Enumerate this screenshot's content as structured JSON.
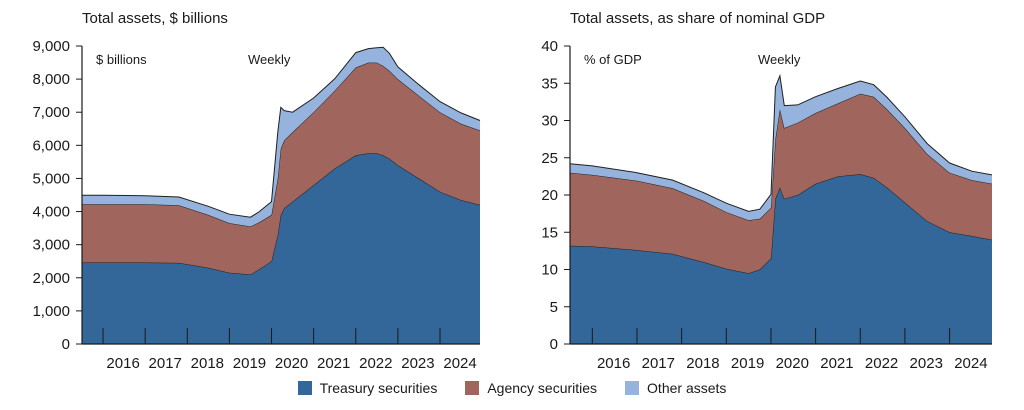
{
  "legend": {
    "treasury": "Treasury securities",
    "agency": "Agency securities",
    "other": "Other assets"
  },
  "colors": {
    "treasury": "#336699",
    "agency": "#a0665e",
    "other": "#95b3dc",
    "stroke": "#1f1f1f"
  },
  "chart_data": [
    {
      "type": "area",
      "stacked": true,
      "title": "Total assets, $ billions",
      "unit_label": "$ billions",
      "frequency_label": "Weekly",
      "ylim": [
        0,
        9000
      ],
      "yticks": [
        0,
        1000,
        2000,
        3000,
        4000,
        5000,
        6000,
        7000,
        8000,
        9000
      ],
      "ytick_labels": [
        "0",
        "1,000",
        "2,000",
        "3,000",
        "4,000",
        "5,000",
        "6,000",
        "7,000",
        "8,000",
        "9,000"
      ],
      "xlim": [
        2015.5,
        2024.95
      ],
      "xtick_labels": [
        "2016",
        "2017",
        "2018",
        "2019",
        "2020",
        "2021",
        "2022",
        "2023",
        "2024"
      ],
      "x": [
        2015.5,
        2016.0,
        2017.0,
        2017.8,
        2018.5,
        2019.0,
        2019.5,
        2019.7,
        2020.0,
        2020.15,
        2020.22,
        2020.3,
        2020.5,
        2021.0,
        2021.5,
        2022.0,
        2022.3,
        2022.5,
        2022.65,
        2022.8,
        2023.0,
        2023.5,
        2024.0,
        2024.5,
        2024.95
      ],
      "series": [
        {
          "name": "Treasury securities",
          "values": [
            2460,
            2460,
            2460,
            2450,
            2300,
            2150,
            2100,
            2250,
            2500,
            3300,
            3900,
            4100,
            4300,
            4800,
            5300,
            5700,
            5760,
            5760,
            5700,
            5600,
            5400,
            5000,
            4600,
            4350,
            4200
          ]
        },
        {
          "name": "Agency securities",
          "values": [
            1760,
            1760,
            1760,
            1740,
            1600,
            1500,
            1450,
            1420,
            1400,
            1700,
            2000,
            2050,
            2100,
            2200,
            2350,
            2650,
            2740,
            2740,
            2700,
            2650,
            2600,
            2500,
            2400,
            2300,
            2250
          ]
        },
        {
          "name": "Other assets",
          "values": [
            270,
            270,
            260,
            250,
            260,
            270,
            280,
            320,
            400,
            1400,
            1250,
            900,
            600,
            430,
            360,
            450,
            420,
            450,
            560,
            530,
            370,
            330,
            320,
            330,
            300
          ]
        }
      ]
    },
    {
      "type": "area",
      "stacked": true,
      "title": "Total assets, as share of nominal GDP",
      "unit_label": "% of GDP",
      "frequency_label": "Weekly",
      "ylim": [
        0,
        40
      ],
      "yticks": [
        0,
        5,
        10,
        15,
        20,
        25,
        30,
        35,
        40
      ],
      "ytick_labels": [
        "0",
        "5",
        "10",
        "15",
        "20",
        "25",
        "30",
        "35",
        "40"
      ],
      "xlim": [
        2015.5,
        2024.95
      ],
      "xtick_labels": [
        "2016",
        "2017",
        "2018",
        "2019",
        "2020",
        "2021",
        "2022",
        "2023",
        "2024"
      ],
      "x": [
        2015.5,
        2016.0,
        2017.0,
        2017.8,
        2018.5,
        2019.0,
        2019.5,
        2019.75,
        2020.0,
        2020.1,
        2020.2,
        2020.3,
        2020.6,
        2021.0,
        2021.5,
        2022.0,
        2022.3,
        2022.6,
        2023.0,
        2023.5,
        2024.0,
        2024.5,
        2024.95
      ],
      "series": [
        {
          "name": "Treasury securities",
          "values": [
            13.2,
            13.1,
            12.6,
            12.1,
            11.0,
            10.1,
            9.5,
            10.0,
            11.5,
            19.5,
            21.0,
            19.5,
            20.0,
            21.5,
            22.5,
            22.8,
            22.3,
            21.0,
            19.0,
            16.5,
            15.0,
            14.5,
            14.0
          ]
        },
        {
          "name": "Agency securities",
          "values": [
            9.8,
            9.6,
            9.3,
            8.8,
            8.2,
            7.6,
            7.1,
            6.8,
            6.8,
            8.0,
            10.5,
            9.5,
            9.7,
            9.5,
            9.8,
            10.8,
            10.9,
            10.5,
            10.0,
            9.0,
            8.0,
            7.5,
            7.5
          ]
        },
        {
          "name": "Other assets",
          "values": [
            1.2,
            1.2,
            1.1,
            1.1,
            1.1,
            1.2,
            1.2,
            1.3,
            1.8,
            7.0,
            4.5,
            3.0,
            2.4,
            2.2,
            2.0,
            1.7,
            1.6,
            1.6,
            1.5,
            1.4,
            1.3,
            1.2,
            1.2
          ]
        }
      ]
    }
  ]
}
